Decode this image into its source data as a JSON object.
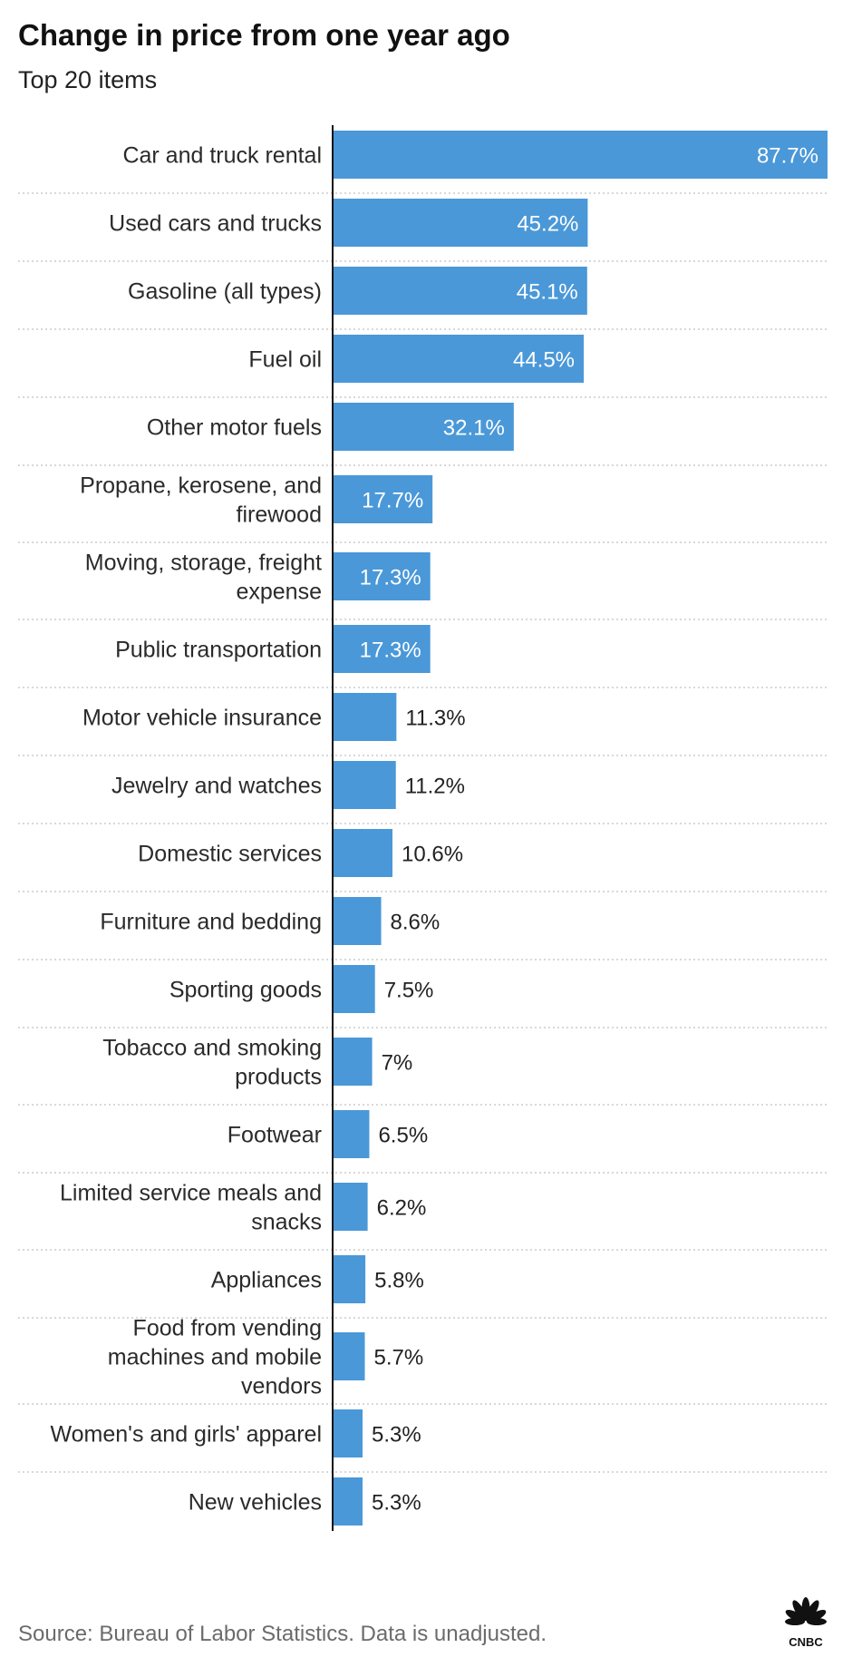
{
  "header": {
    "title": "Change in price from one year ago",
    "subtitle": "Top 20 items"
  },
  "footer": {
    "source": "Source: Bureau of Labor Statistics. Data is unadjusted.",
    "logo_text": "CNBC"
  },
  "colors": {
    "bar": "#4a98d8",
    "label_inside": "#ffffff",
    "label_outside": "#222222",
    "gridline": "#cccccc",
    "axis": "#111111"
  },
  "chart_data": {
    "type": "bar",
    "orientation": "horizontal",
    "title": "Change in price from one year ago",
    "subtitle": "Top 20 items",
    "xlabel": "",
    "ylabel": "",
    "unit": "%",
    "xlim": [
      0,
      87.7
    ],
    "categories": [
      [
        "Car and truck rental"
      ],
      [
        "Used cars and trucks"
      ],
      [
        "Gasoline (all types)"
      ],
      [
        "Fuel oil"
      ],
      [
        "Other motor fuels"
      ],
      [
        "Propane, kerosene, and",
        "firewood"
      ],
      [
        "Moving, storage, freight",
        "expense"
      ],
      [
        "Public transportation"
      ],
      [
        "Motor vehicle insurance"
      ],
      [
        "Jewelry and watches"
      ],
      [
        "Domestic services"
      ],
      [
        "Furniture and bedding"
      ],
      [
        "Sporting goods"
      ],
      [
        "Tobacco and smoking",
        "products"
      ],
      [
        "Footwear"
      ],
      [
        "Limited service meals and",
        "snacks"
      ],
      [
        "Appliances"
      ],
      [
        "Food from vending",
        "machines and mobile",
        "vendors"
      ],
      [
        "Women's and girls' apparel"
      ],
      [
        "New vehicles"
      ]
    ],
    "values": [
      87.7,
      45.2,
      45.1,
      44.5,
      32.1,
      17.7,
      17.3,
      17.3,
      11.3,
      11.2,
      10.6,
      8.6,
      7.5,
      7,
      6.5,
      6.2,
      5.8,
      5.7,
      5.3,
      5.3
    ],
    "value_labels": [
      "87.7%",
      "45.2%",
      "45.1%",
      "44.5%",
      "32.1%",
      "17.7%",
      "17.3%",
      "17.3%",
      "11.3%",
      "11.2%",
      "10.6%",
      "8.6%",
      "7.5%",
      "7%",
      "6.5%",
      "6.2%",
      "5.8%",
      "5.7%",
      "5.3%",
      "5.3%"
    ]
  }
}
